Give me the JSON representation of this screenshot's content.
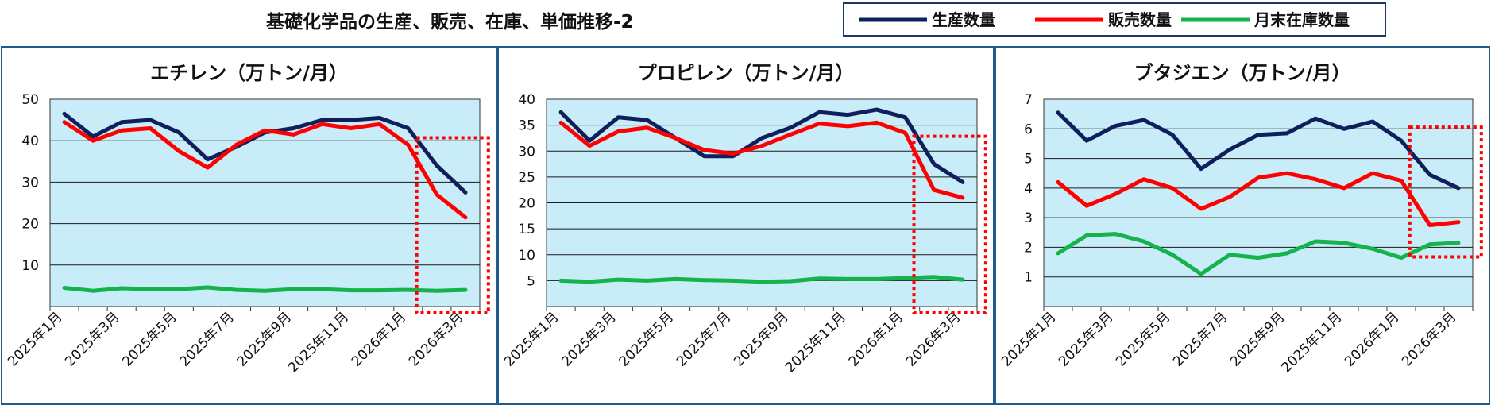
{
  "page": {
    "title": "基礎化学品の生産、販売、在庫、単価推移-2"
  },
  "legend": {
    "items": [
      {
        "label": "生産数量",
        "color": "#0f1f5c"
      },
      {
        "label": "販売数量",
        "color": "#ff0000"
      },
      {
        "label": "月末在庫数量",
        "color": "#14b34b"
      }
    ]
  },
  "colors": {
    "plot_bg": "#c8ecf8",
    "highlight": "#ff0000",
    "border": "#1f5c8a"
  },
  "chart_data": [
    {
      "type": "line",
      "title": "エチレン（万トン/月）",
      "x": [
        "2025年1月",
        "2025年2月",
        "2025年3月",
        "2025年4月",
        "2025年5月",
        "2025年6月",
        "2025年7月",
        "2025年8月",
        "2025年9月",
        "2025年10月",
        "2025年11月",
        "2025年12月",
        "2026年1月",
        "2026年2月",
        "2026年3月"
      ],
      "tick_labels": [
        "2025年1月",
        "2025年3月",
        "2025年5月",
        "2025年7月",
        "2025年9月",
        "2025年11月",
        "2026年1月",
        "2026年3月"
      ],
      "ylim": [
        0,
        50
      ],
      "yticks": [
        10,
        20,
        30,
        40,
        50
      ],
      "grid": true,
      "highlight_range": [
        "2026年2月",
        "2026年3月"
      ],
      "series": [
        {
          "name": "生産数量",
          "values": [
            46.5,
            41,
            44.5,
            45,
            42,
            35.5,
            38.5,
            42,
            43,
            45,
            45,
            45.5,
            43,
            34,
            27.5
          ]
        },
        {
          "name": "販売数量",
          "values": [
            44.5,
            40,
            42.5,
            43,
            37.5,
            33.5,
            39,
            42.5,
            41.5,
            44,
            43,
            44,
            39,
            27,
            21.5
          ]
        },
        {
          "name": "月末在庫数量",
          "values": [
            4.5,
            3.8,
            4.4,
            4.2,
            4.2,
            4.6,
            4.0,
            3.8,
            4.2,
            4.2,
            3.9,
            3.9,
            4.0,
            3.8,
            4.0
          ]
        }
      ]
    },
    {
      "type": "line",
      "title": "プロピレン（万トン/月）",
      "x": [
        "2025年1月",
        "2025年2月",
        "2025年3月",
        "2025年4月",
        "2025年5月",
        "2025年6月",
        "2025年7月",
        "2025年8月",
        "2025年9月",
        "2025年10月",
        "2025年11月",
        "2025年12月",
        "2026年1月",
        "2026年2月",
        "2026年3月"
      ],
      "tick_labels": [
        "2025年1月",
        "2025年3月",
        "2025年5月",
        "2025年7月",
        "2025年9月",
        "2025年11月",
        "2026年1月",
        "2026年3月"
      ],
      "ylim": [
        0,
        40
      ],
      "yticks": [
        5,
        10,
        15,
        20,
        25,
        30,
        35,
        40
      ],
      "grid": true,
      "highlight_range": [
        "2026年2月",
        "2026年3月"
      ],
      "series": [
        {
          "name": "生産数量",
          "values": [
            37.5,
            32,
            36.5,
            36,
            32.5,
            29,
            29,
            32.5,
            34.5,
            37.5,
            37,
            38,
            36.5,
            27.5,
            24
          ]
        },
        {
          "name": "販売数量",
          "values": [
            35.5,
            31,
            33.8,
            34.5,
            32.5,
            30.2,
            29.5,
            31,
            33.2,
            35.3,
            34.8,
            35.5,
            33.5,
            22.5,
            21
          ]
        },
        {
          "name": "月末在庫数量",
          "values": [
            5,
            4.8,
            5.2,
            5.0,
            5.3,
            5.1,
            5.0,
            4.8,
            4.9,
            5.4,
            5.3,
            5.3,
            5.5,
            5.7,
            5.2
          ]
        }
      ]
    },
    {
      "type": "line",
      "title": "ブタジエン（万トン/月）",
      "x": [
        "2025年1月",
        "2025年2月",
        "2025年3月",
        "2025年4月",
        "2025年5月",
        "2025年6月",
        "2025年7月",
        "2025年8月",
        "2025年9月",
        "2025年10月",
        "2025年11月",
        "2025年12月",
        "2026年1月",
        "2026年2月",
        "2026年3月"
      ],
      "tick_labels": [
        "2025年1月",
        "2025年3月",
        "2025年5月",
        "2025年7月",
        "2025年9月",
        "2025年11月",
        "2026年1月",
        "2026年3月"
      ],
      "ylim": [
        0,
        7
      ],
      "yticks": [
        1,
        2,
        3,
        4,
        5,
        6,
        7
      ],
      "grid": true,
      "highlight_range": [
        "2026年2月",
        "2026年3月"
      ],
      "series": [
        {
          "name": "生産数量",
          "values": [
            6.55,
            5.6,
            6.1,
            6.3,
            5.8,
            4.65,
            5.3,
            5.8,
            5.85,
            6.35,
            6.0,
            6.25,
            5.6,
            4.45,
            4.0
          ]
        },
        {
          "name": "販売数量",
          "values": [
            4.2,
            3.4,
            3.8,
            4.3,
            4.0,
            3.3,
            3.7,
            4.35,
            4.5,
            4.3,
            4.0,
            4.5,
            4.25,
            2.75,
            2.85
          ]
        },
        {
          "name": "月末在庫数量",
          "values": [
            1.8,
            2.4,
            2.45,
            2.2,
            1.75,
            1.1,
            1.75,
            1.65,
            1.8,
            2.2,
            2.15,
            1.95,
            1.65,
            2.1,
            2.15
          ]
        }
      ]
    }
  ]
}
